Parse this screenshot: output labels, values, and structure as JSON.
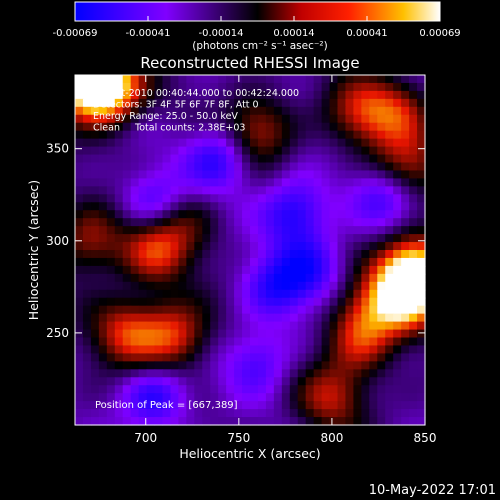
{
  "colorbar": {
    "ticks": [
      "-0.00069",
      "-0.00041",
      "-0.00014",
      "0.00014",
      "0.00041",
      "0.00069"
    ],
    "unit_label": "(photons cm⁻² s⁻¹ asec⁻²)"
  },
  "chart_data": {
    "type": "heatmap",
    "title": "Reconstructed RHESSI Image",
    "xlabel": "Heliocentric X (arcsec)",
    "ylabel": "Heliocentric Y (arcsec)",
    "xlim": [
      662,
      850
    ],
    "ylim": [
      200,
      390
    ],
    "x_ticks": [
      700,
      750,
      800,
      850
    ],
    "y_ticks": [
      250,
      300,
      350
    ],
    "annotations": [
      "18-Oct-2010 00:40:44.000 to 00:42:24.000",
      "Detectors: 3F 4F 5F 6F 7F 8F, Att 0",
      "Energy Range: 25.0 - 50.0 keV",
      "Clean     Total counts: 2.38E+03"
    ],
    "peak_label": "Position of Peak = [667,389]",
    "peak_position": [
      667,
      389
    ],
    "colorbar_range": [
      -0.00069,
      0.00069
    ],
    "colormap": [
      "#0000ff",
      "#8000ff",
      "#000000",
      "#ff0000",
      "#ffc000",
      "#ffffff"
    ],
    "blobs": [
      {
        "x": 668,
        "y": 387,
        "v": 1.0
      },
      {
        "x": 680,
        "y": 383,
        "v": 0.8
      },
      {
        "x": 845,
        "y": 285,
        "v": 0.95
      },
      {
        "x": 840,
        "y": 270,
        "v": 0.85
      },
      {
        "x": 840,
        "y": 340,
        "v": 0.5
      },
      {
        "x": 835,
        "y": 370,
        "v": 0.45
      },
      {
        "x": 760,
        "y": 360,
        "v": 0.5
      },
      {
        "x": 815,
        "y": 370,
        "v": 0.45
      },
      {
        "x": 690,
        "y": 250,
        "v": 0.55
      },
      {
        "x": 705,
        "y": 295,
        "v": 0.55
      },
      {
        "x": 715,
        "y": 248,
        "v": 0.6
      },
      {
        "x": 815,
        "y": 245,
        "v": 0.45
      },
      {
        "x": 800,
        "y": 215,
        "v": 0.45
      },
      {
        "x": 820,
        "y": 262,
        "v": 0.4
      },
      {
        "x": 720,
        "y": 310,
        "v": 0.3
      },
      {
        "x": 670,
        "y": 300,
        "v": 0.45
      },
      {
        "x": 705,
        "y": 215,
        "v": -0.45
      },
      {
        "x": 780,
        "y": 315,
        "v": -0.5
      },
      {
        "x": 740,
        "y": 345,
        "v": -0.45
      },
      {
        "x": 830,
        "y": 325,
        "v": -0.4
      },
      {
        "x": 770,
        "y": 275,
        "v": -0.4
      },
      {
        "x": 705,
        "y": 320,
        "v": -0.4
      },
      {
        "x": 760,
        "y": 235,
        "v": -0.35
      },
      {
        "x": 790,
        "y": 285,
        "v": -0.35
      }
    ]
  },
  "footer": {
    "datetime": "10-May-2022 17:01"
  }
}
